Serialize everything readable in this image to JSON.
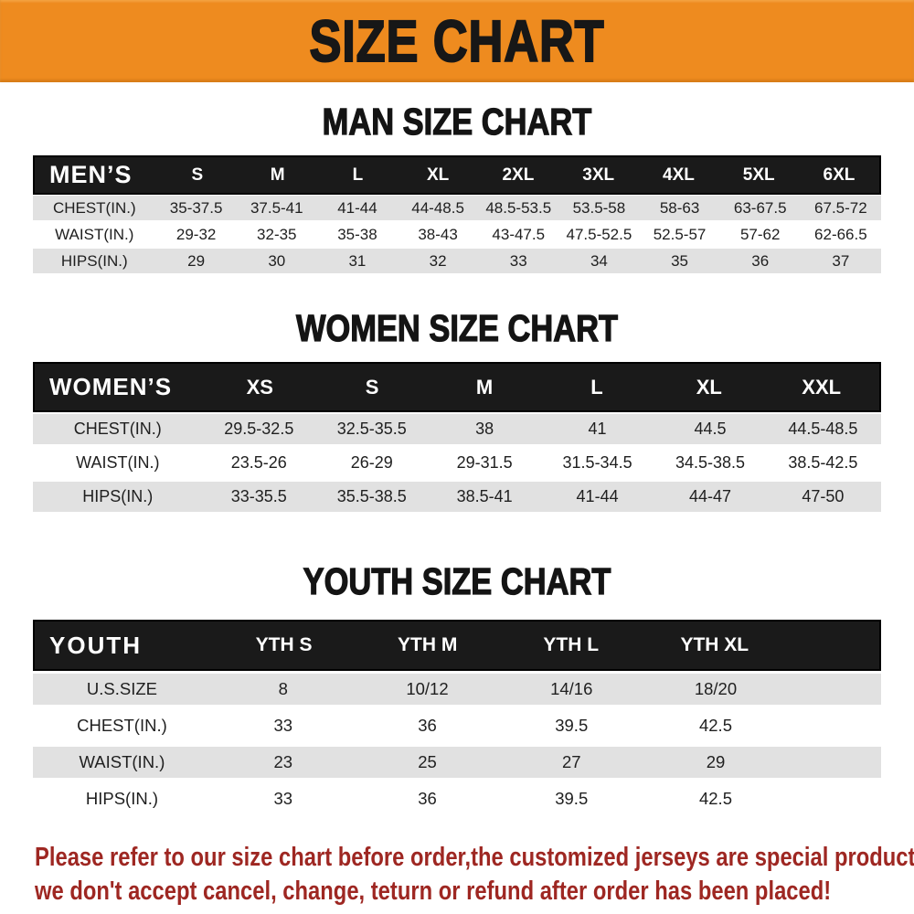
{
  "banner": {
    "title": "SIZE CHART"
  },
  "chart_data": [
    {
      "type": "table",
      "title": "MAN SIZE CHART",
      "row_header": "MEN’S",
      "columns": [
        "S",
        "M",
        "L",
        "XL",
        "2XL",
        "3XL",
        "4XL",
        "5XL",
        "6XL"
      ],
      "rows": [
        {
          "label": "CHEST(IN.)",
          "values": [
            "35-37.5",
            "37.5-41",
            "41-44",
            "44-48.5",
            "48.5-53.5",
            "53.5-58",
            "58-63",
            "63-67.5",
            "67.5-72"
          ]
        },
        {
          "label": "WAIST(IN.)",
          "values": [
            "29-32",
            "32-35",
            "35-38",
            "38-43",
            "43-47.5",
            "47.5-52.5",
            "52.5-57",
            "57-62",
            "62-66.5"
          ]
        },
        {
          "label": "HIPS(IN.)",
          "values": [
            "29",
            "30",
            "31",
            "32",
            "33",
            "34",
            "35",
            "36",
            "37"
          ]
        }
      ]
    },
    {
      "type": "table",
      "title": "WOMEN SIZE CHART",
      "row_header": "WOMEN’S",
      "columns": [
        "XS",
        "S",
        "M",
        "L",
        "XL",
        "XXL"
      ],
      "rows": [
        {
          "label": "CHEST(IN.)",
          "values": [
            "29.5-32.5",
            "32.5-35.5",
            "38",
            "41",
            "44.5",
            "44.5-48.5"
          ]
        },
        {
          "label": "WAIST(IN.)",
          "values": [
            "23.5-26",
            "26-29",
            "29-31.5",
            "31.5-34.5",
            "34.5-38.5",
            "38.5-42.5"
          ]
        },
        {
          "label": "HIPS(IN.)",
          "values": [
            "33-35.5",
            "35.5-38.5",
            "38.5-41",
            "41-44",
            "44-47",
            "47-50"
          ]
        }
      ]
    },
    {
      "type": "table",
      "title": "YOUTH SIZE CHART",
      "row_header": "YOUTH",
      "columns": [
        "YTH S",
        "YTH M",
        "YTH L",
        "YTH XL"
      ],
      "rows": [
        {
          "label": "U.S.SIZE",
          "values": [
            "8",
            "10/12",
            "14/16",
            "18/20"
          ]
        },
        {
          "label": "CHEST(IN.)",
          "values": [
            "33",
            "36",
            "39.5",
            "42.5"
          ]
        },
        {
          "label": "WAIST(IN.)",
          "values": [
            "23",
            "25",
            "27",
            "29"
          ]
        },
        {
          "label": "HIPS(IN.)",
          "values": [
            "33",
            "36",
            "39.5",
            "42.5"
          ]
        }
      ]
    }
  ],
  "footer": {
    "line1": "Please refer to our size chart before order,the customized jerseys are special products,",
    "line2": "we don't accept cancel, change, teturn or refund after order has been placed!"
  },
  "colors": {
    "banner_bg": "#ee8b1f",
    "banner_text": "#171717",
    "header_bar_bg": "#1a1a1a",
    "header_bar_text": "#ffffff",
    "row_stripe": "#e1e1e1",
    "table_text": "#1f1f1f",
    "footer_text": "#9e2722"
  }
}
